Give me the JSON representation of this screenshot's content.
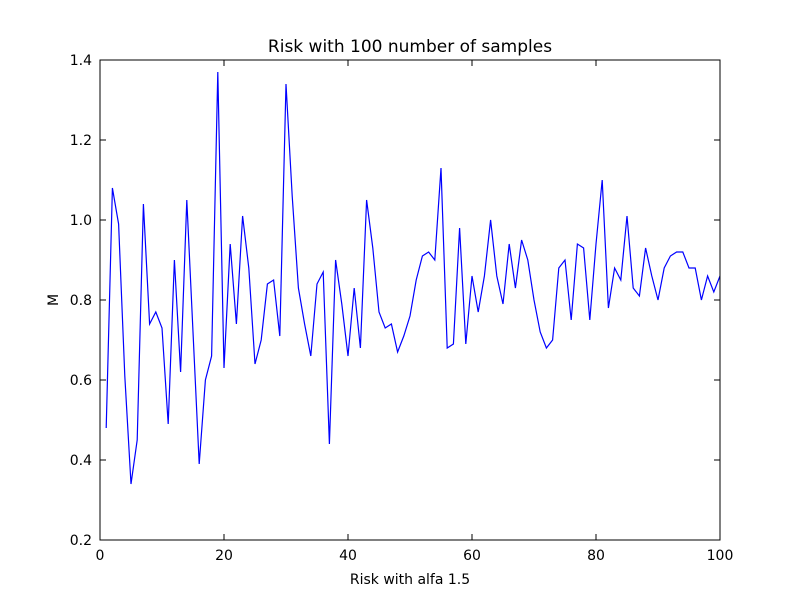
{
  "chart_data": {
    "type": "line",
    "title": "Risk with 100 number of samples",
    "xlabel": "Risk with alfa 1.5",
    "ylabel": "M",
    "xlim": [
      0,
      100
    ],
    "ylim": [
      0.2,
      1.4
    ],
    "x_ticks": [
      0,
      20,
      40,
      60,
      80,
      100
    ],
    "y_ticks": [
      0.2,
      0.4,
      0.6,
      0.8,
      1.0,
      1.2,
      1.4
    ],
    "x_tick_labels": [
      "0",
      "20",
      "40",
      "60",
      "80",
      "100"
    ],
    "y_tick_labels": [
      "0.2",
      "0.4",
      "0.6",
      "0.8",
      "1.0",
      "1.2",
      "1.4"
    ],
    "grid": false,
    "line_color": "#0000ff",
    "series": [
      {
        "x": [
          1,
          2,
          3,
          4,
          5,
          6,
          7,
          8,
          9,
          10,
          11,
          12,
          13,
          14,
          15,
          16,
          17,
          18,
          19,
          20,
          21,
          22,
          23,
          24,
          25,
          26,
          27,
          28,
          29,
          30,
          31,
          32,
          33,
          34,
          35,
          36,
          37,
          38,
          39,
          40,
          41,
          42,
          43,
          44,
          45,
          46,
          47,
          48,
          49,
          50,
          51,
          52,
          53,
          54,
          55,
          56,
          57,
          58,
          59,
          60,
          61,
          62,
          63,
          64,
          65,
          66,
          67,
          68,
          69,
          70,
          71,
          72,
          73,
          74,
          75,
          76,
          77,
          78,
          79,
          80,
          81,
          82,
          83,
          84,
          85,
          86,
          87,
          88,
          89,
          90,
          91,
          92,
          93,
          94,
          95,
          96,
          97,
          98,
          99,
          100
        ],
        "values": [
          0.48,
          1.08,
          0.99,
          0.61,
          0.34,
          0.45,
          1.04,
          0.74,
          0.77,
          0.73,
          0.49,
          0.9,
          0.62,
          1.05,
          0.72,
          0.39,
          0.6,
          0.66,
          1.37,
          0.63,
          0.94,
          0.74,
          1.01,
          0.88,
          0.64,
          0.7,
          0.84,
          0.85,
          0.71,
          1.34,
          1.06,
          0.83,
          0.74,
          0.66,
          0.84,
          0.87,
          0.44,
          0.9,
          0.79,
          0.66,
          0.83,
          0.68,
          1.05,
          0.93,
          0.77,
          0.73,
          0.74,
          0.67,
          0.71,
          0.76,
          0.85,
          0.91,
          0.92,
          0.9,
          1.13,
          0.68,
          0.69,
          0.98,
          0.69,
          0.86,
          0.77,
          0.86,
          1.0,
          0.86,
          0.79,
          0.94,
          0.83,
          0.95,
          0.9,
          0.8,
          0.72,
          0.68,
          0.7,
          0.88,
          0.9,
          0.75,
          0.94,
          0.93,
          0.75,
          0.94,
          1.1,
          0.78,
          0.88,
          0.85,
          1.01,
          0.83,
          0.81,
          0.93,
          0.86,
          0.8,
          0.88,
          0.91,
          0.92,
          0.92,
          0.88,
          0.88,
          0.8,
          0.86,
          0.82,
          0.86
        ]
      }
    ]
  }
}
